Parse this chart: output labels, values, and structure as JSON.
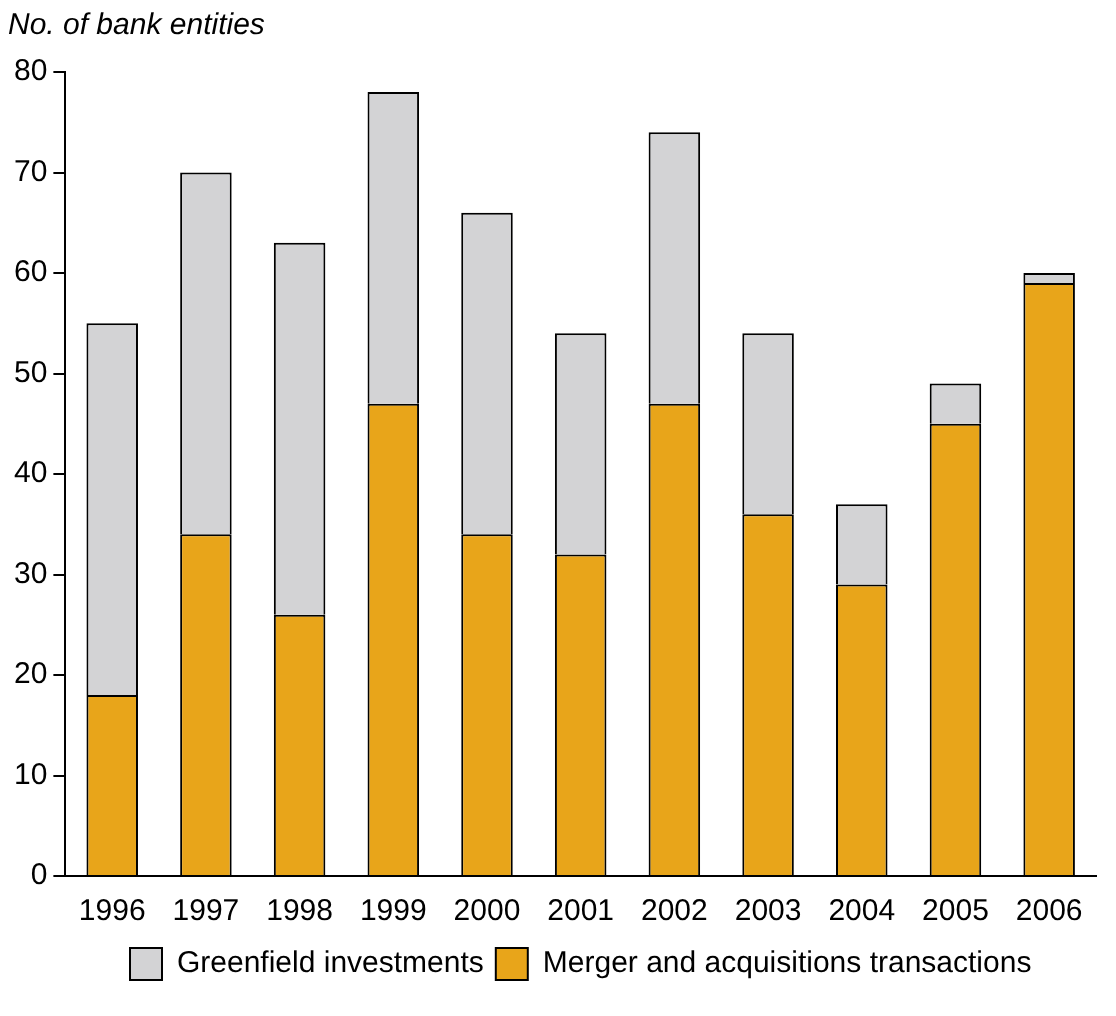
{
  "chart_data": {
    "type": "bar",
    "ylabel": "No. of bank entities",
    "categories": [
      "1996",
      "1997",
      "1998",
      "1999",
      "2000",
      "2001",
      "2002",
      "2003",
      "2004",
      "2005",
      "2006"
    ],
    "series": [
      {
        "name": "Merger and acquisitions transactions",
        "color": "#e8a51a",
        "values": [
          18,
          34,
          26,
          47,
          34,
          32,
          47,
          36,
          29,
          45,
          59
        ]
      },
      {
        "name": "Greenfield investments",
        "color": "#d3d3d5",
        "values": [
          37,
          36,
          37,
          31,
          32,
          22,
          27,
          18,
          8,
          4,
          1
        ]
      }
    ],
    "stacked": true,
    "ylim": [
      0,
      80
    ],
    "yticks": [
      0,
      10,
      20,
      30,
      40,
      50,
      60,
      70,
      80
    ],
    "grid": false,
    "legend": "bottom"
  }
}
